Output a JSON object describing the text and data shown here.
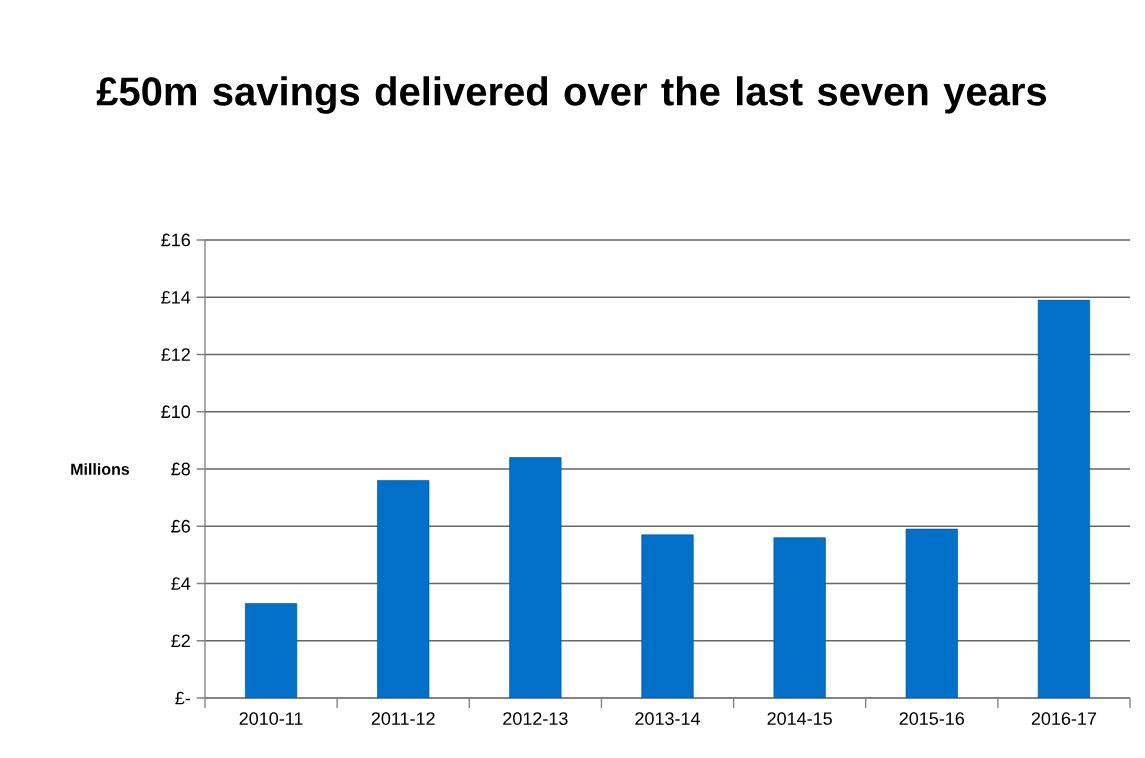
{
  "chart_data": {
    "type": "bar",
    "title": "£50m savings delivered over the last seven years",
    "ylabel": "Millions",
    "categories": [
      "2010-11",
      "2011-12",
      "2012-13",
      "2013-14",
      "2014-15",
      "2015-16",
      "2016-17"
    ],
    "values": [
      3.3,
      7.6,
      8.4,
      5.7,
      5.6,
      5.9,
      13.9
    ],
    "color": "#0070c8",
    "ylim": [
      0,
      16
    ],
    "yticks": [
      {
        "value": 0,
        "label": "£-"
      },
      {
        "value": 2,
        "label": "£2"
      },
      {
        "value": 4,
        "label": "£4"
      },
      {
        "value": 6,
        "label": "£6"
      },
      {
        "value": 8,
        "label": "£8"
      },
      {
        "value": 10,
        "label": "£10"
      },
      {
        "value": 12,
        "label": "£12"
      },
      {
        "value": 14,
        "label": "£14"
      },
      {
        "value": 16,
        "label": "£16"
      }
    ],
    "grid": "y"
  }
}
